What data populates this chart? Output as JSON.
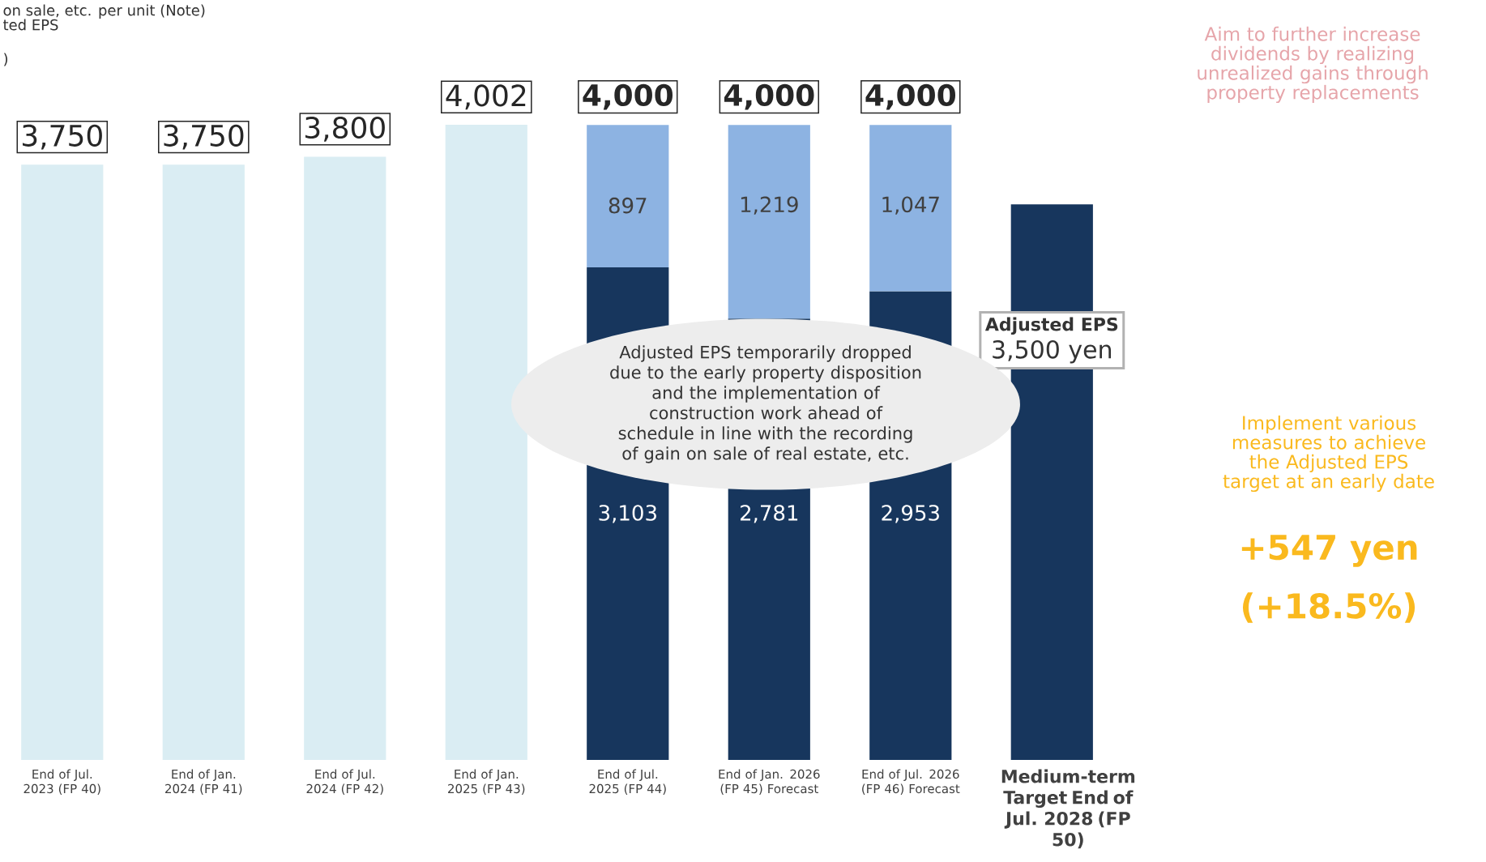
{
  "chart_data": {
    "type": "bar",
    "stacked": true,
    "categories": [
      "End of Jul. 2023 (FP 40)",
      "End of Jan. 2024 (FP 41)",
      "End of Jul. 2024 (FP 42)",
      "End of Jan. 2025 (FP 43)",
      "End of Jul. 2025 (FP 44)",
      "End of Jan. 2026 (FP 45) Forecast",
      "End of Jul. 2026 (FP 46) Forecast",
      "Medium-term Target End of Jul. 2028 (FP 50)"
    ],
    "series": [
      {
        "color": "#17365d",
        "values": [
          null,
          null,
          null,
          null,
          3103,
          2781,
          2953,
          3500
        ],
        "value_labels": [
          null,
          null,
          null,
          null,
          "3,103",
          "2,781",
          "2,953",
          "3,500 yen"
        ]
      },
      {
        "color": "#8db3e2",
        "values": [
          null,
          null,
          null,
          null,
          897,
          1219,
          1047,
          null
        ],
        "value_labels": [
          null,
          null,
          null,
          null,
          "897",
          "1,219",
          "1,047",
          null
        ]
      },
      {
        "color": "#daedf3",
        "values": [
          3750,
          3750,
          3800,
          4002,
          null,
          null,
          null,
          null
        ]
      }
    ],
    "totals": [
      "3,750",
      "3,750",
      "3,800",
      "4,002",
      "4,000",
      "4,000",
      "4,000",
      null
    ],
    "annotations": [
      "on sale, etc. per unit (Note)",
      "ted EPS",
      ")",
      "Adjusted EPS temporarily dropped due to the early property disposition and the implementation of construction work ahead of schedule in line with the recording of gain on sale of real estate, etc.",
      "Aim to further increase dividends by realizing unrealized gains through property replacements",
      "Implement various measures to achieve the Adjusted EPS target at an early date",
      "+547 yen",
      "(+18.5%)",
      "Adjusted EPS"
    ]
  }
}
